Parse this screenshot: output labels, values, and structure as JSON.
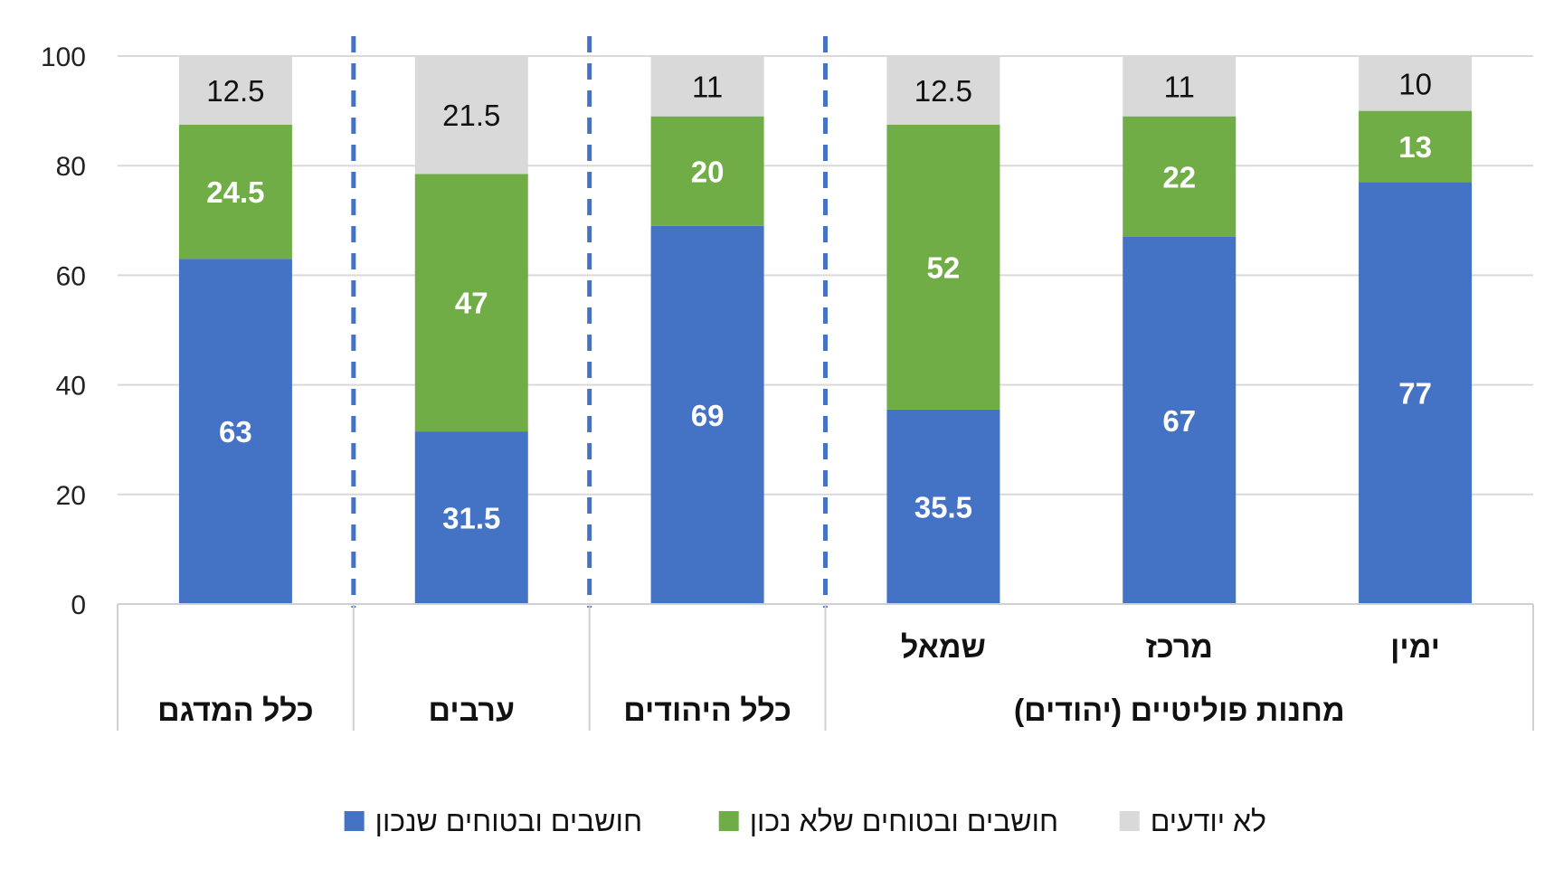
{
  "chart_data": {
    "type": "bar",
    "stacked": true,
    "direction": "rtl",
    "ylim": [
      0,
      100
    ],
    "yticks": [
      0,
      20,
      40,
      60,
      80,
      100
    ],
    "grid": true,
    "legend_position": "bottom",
    "categories": [
      "ימין",
      "מרכז",
      "שמאל",
      "כלל היהודים",
      "ערבים",
      "כלל המדגם"
    ],
    "groups": [
      {
        "label": "מחנות פוליטיים (יהודים)",
        "categories": [
          "ימין",
          "מרכז",
          "שמאל"
        ]
      },
      {
        "label": "כלל היהודים",
        "categories": [
          "כלל היהודים"
        ]
      },
      {
        "label": "ערבים",
        "categories": [
          "ערבים"
        ]
      },
      {
        "label": "כלל המדגם",
        "categories": [
          "כלל המדגם"
        ]
      }
    ],
    "series": [
      {
        "name": "חושבים ובטוחים שנכון",
        "color": "#4472C4",
        "values": [
          77,
          67,
          35.5,
          69,
          31.5,
          63
        ]
      },
      {
        "name": "חושבים ובטוחים שלא נכון",
        "color": "#70AD47",
        "values": [
          13,
          22,
          52,
          20,
          47,
          24.5
        ]
      },
      {
        "name": "לא יודעים",
        "color": "#D9D9D9",
        "values": [
          10,
          11,
          12.5,
          11,
          21.5,
          12.5
        ]
      }
    ],
    "title": "",
    "xlabel": "",
    "ylabel": ""
  },
  "colors": {
    "grid": "#D9D9D9",
    "separator": "#4472C4",
    "axis": "#D0D0D0"
  }
}
